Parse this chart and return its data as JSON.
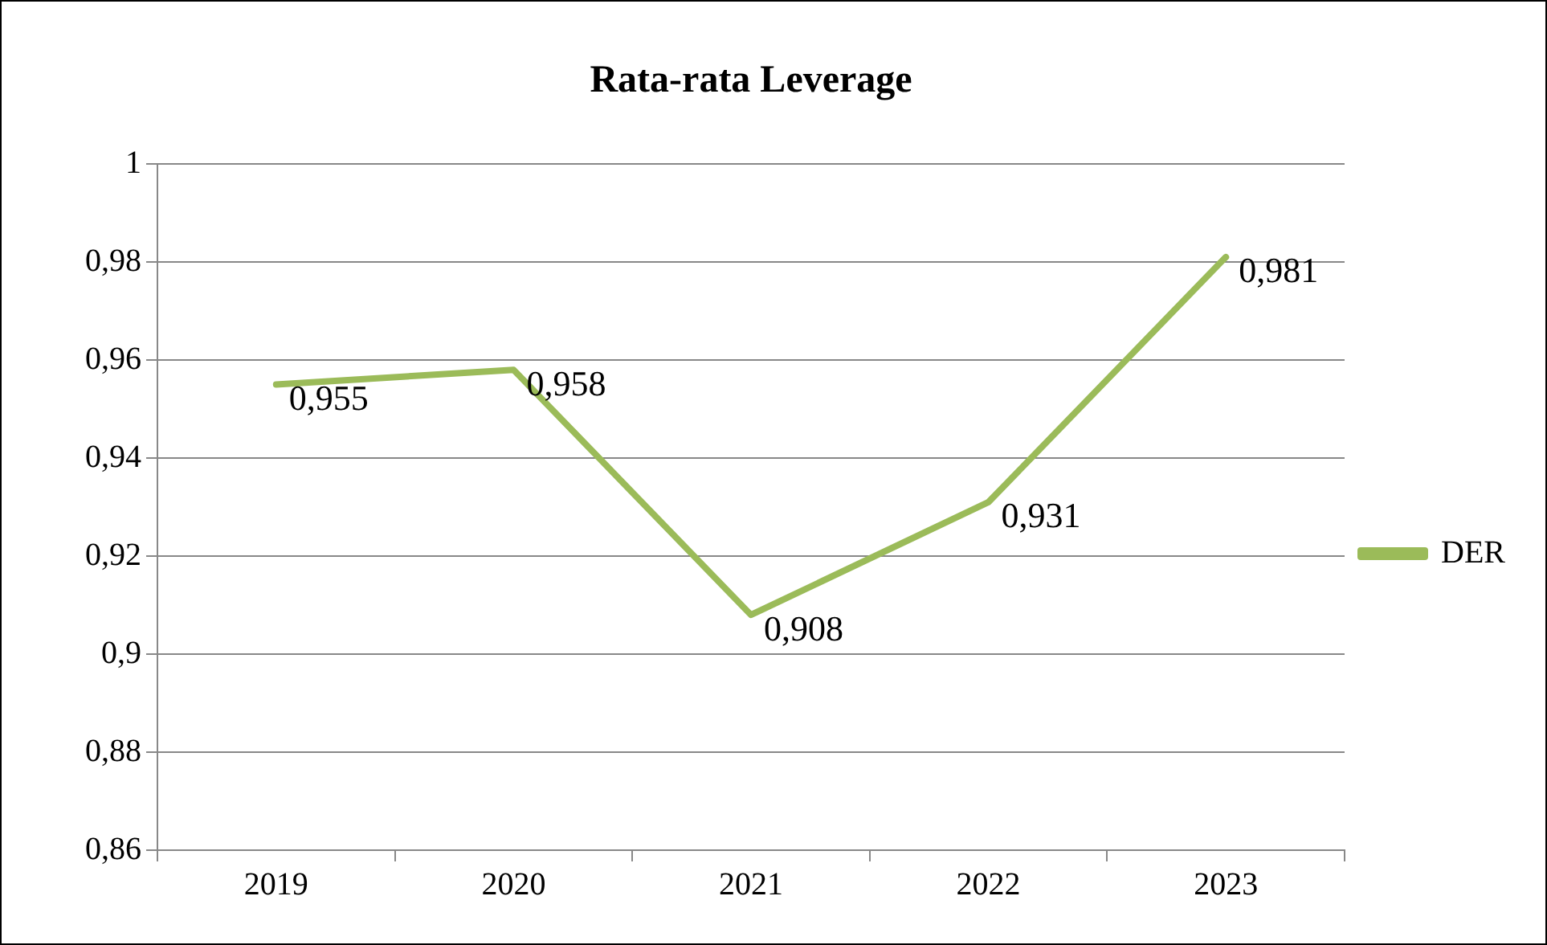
{
  "chart_data": {
    "type": "line",
    "title": "Rata-rata Leverage",
    "categories": [
      "2019",
      "2020",
      "2021",
      "2022",
      "2023"
    ],
    "series": [
      {
        "name": "DER",
        "color": "#9bbb59",
        "values": [
          0.955,
          0.958,
          0.908,
          0.931,
          0.981
        ],
        "value_labels": [
          "0,955",
          "0,958",
          "0,908",
          "0,931",
          "0,981"
        ]
      }
    ],
    "ylim": [
      0.86,
      1
    ],
    "yticks": [
      {
        "value": 0.86,
        "label": "0,86"
      },
      {
        "value": 0.88,
        "label": "0,88"
      },
      {
        "value": 0.9,
        "label": "0,9"
      },
      {
        "value": 0.92,
        "label": "0,92"
      },
      {
        "value": 0.94,
        "label": "0,94"
      },
      {
        "value": 0.96,
        "label": "0,96"
      },
      {
        "value": 0.98,
        "label": "0,98"
      },
      {
        "value": 1,
        "label": "1"
      }
    ],
    "grid": "y",
    "legend": "right",
    "marker": "none",
    "line_style": "solid"
  }
}
